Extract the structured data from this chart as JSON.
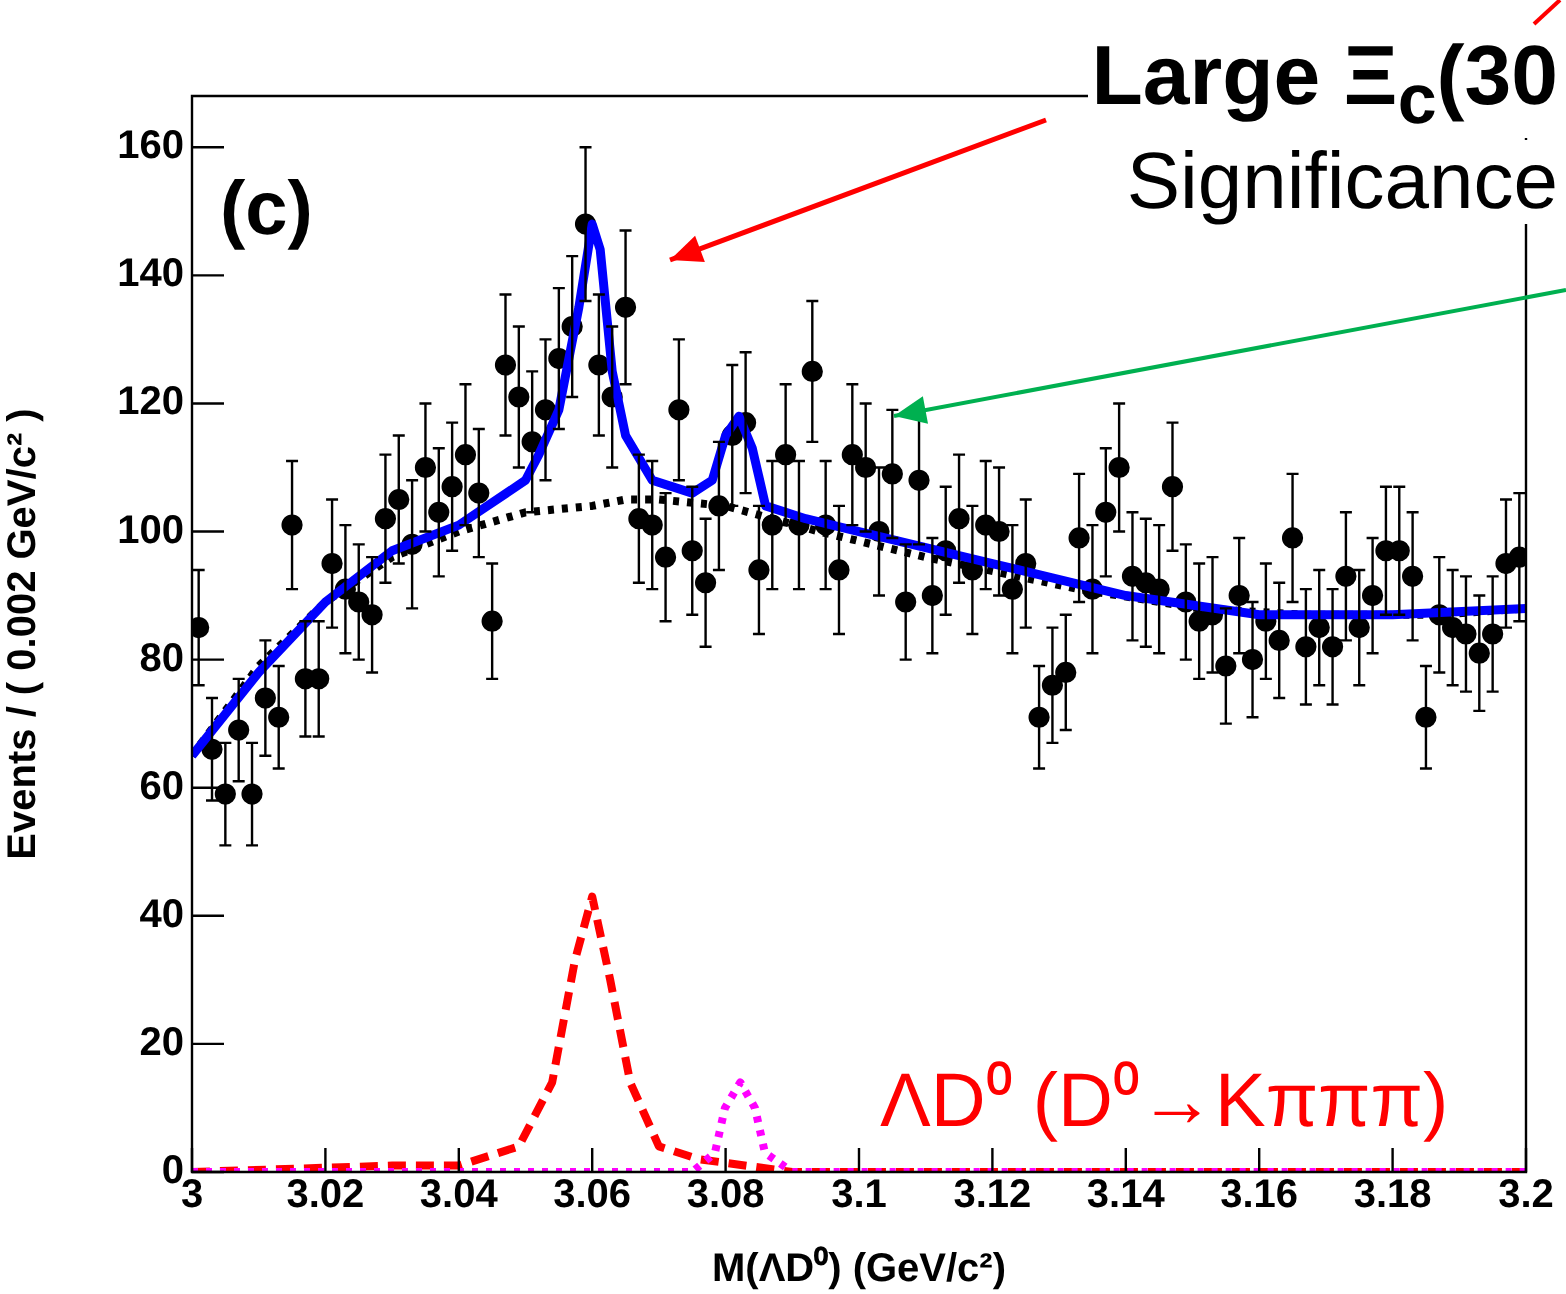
{
  "chart_data": {
    "type": "scatter",
    "title": "Large Ξ$_{c}$(30",
    "subtitle": "Significance",
    "xlabel": "M(ΛD⁰) (GeV/c²)",
    "ylabel": "Events / ( 0.002 GeV/c² )",
    "annotations": [
      "(c)",
      "ΛD⁰ (D⁰→Kπππ)"
    ],
    "xlim": [
      3,
      3.2
    ],
    "xticks": [
      3,
      3.02,
      3.04,
      3.06,
      3.08,
      3.1,
      3.12,
      3.14,
      3.16,
      3.18,
      3.2
    ],
    "ylim": [
      0,
      168
    ],
    "yticks": [
      0,
      20,
      40,
      60,
      80,
      100,
      120,
      140,
      160
    ],
    "grid": false,
    "legend": false,
    "series": [
      {
        "color": "#000000",
        "marker": "circle",
        "x": [
          3.001,
          3.003,
          3.005,
          3.007,
          3.009,
          3.011,
          3.013,
          3.015,
          3.017,
          3.019,
          3.021,
          3.023,
          3.025,
          3.027,
          3.029,
          3.031,
          3.033,
          3.035,
          3.037,
          3.039,
          3.041,
          3.043,
          3.045,
          3.047,
          3.049,
          3.051,
          3.053,
          3.055,
          3.057,
          3.059,
          3.061,
          3.063,
          3.065,
          3.067,
          3.069,
          3.071,
          3.073,
          3.075,
          3.077,
          3.079,
          3.081,
          3.083,
          3.085,
          3.087,
          3.089,
          3.091,
          3.093,
          3.095,
          3.097,
          3.099,
          3.101,
          3.103,
          3.105,
          3.107,
          3.109,
          3.111,
          3.113,
          3.115,
          3.117,
          3.119,
          3.121,
          3.123,
          3.125,
          3.127,
          3.129,
          3.131,
          3.133,
          3.135,
          3.137,
          3.139,
          3.141,
          3.143,
          3.145,
          3.147,
          3.149,
          3.151,
          3.153,
          3.155,
          3.157,
          3.159,
          3.161,
          3.163,
          3.165,
          3.167,
          3.169,
          3.171,
          3.173,
          3.175,
          3.177,
          3.179,
          3.181,
          3.183,
          3.185,
          3.187,
          3.189,
          3.191,
          3.193,
          3.195,
          3.197,
          3.199
        ],
        "values": [
          85,
          66,
          59,
          69,
          59,
          74,
          71,
          101,
          77,
          77,
          95,
          91,
          89,
          87,
          102,
          105,
          98,
          110,
          103,
          107,
          112,
          106,
          86,
          126,
          121,
          114,
          119,
          127,
          132,
          148,
          126,
          121,
          135,
          102,
          101,
          96,
          119,
          97,
          92,
          104,
          115,
          117,
          94,
          101,
          112,
          101,
          125,
          101,
          94,
          112,
          110,
          100,
          109,
          89,
          108,
          90,
          97,
          102,
          94,
          101,
          100,
          91,
          95,
          71,
          76,
          78,
          99,
          91,
          103,
          110,
          93,
          92,
          91,
          107,
          89,
          86,
          87,
          79,
          90,
          80,
          86,
          83,
          99,
          82,
          85,
          82,
          93,
          85,
          90,
          97,
          97,
          93,
          71,
          87,
          85,
          84,
          81,
          84,
          95,
          96
        ],
        "errors": [
          9,
          8,
          8,
          8,
          8,
          9,
          8,
          10,
          9,
          9,
          10,
          10,
          9,
          9,
          10,
          10,
          10,
          10,
          10,
          10,
          11,
          10,
          9,
          11,
          11,
          11,
          11,
          11,
          11,
          12,
          11,
          11,
          12,
          10,
          10,
          10,
          11,
          10,
          10,
          10,
          11,
          11,
          10,
          10,
          11,
          10,
          11,
          10,
          10,
          11,
          10,
          10,
          10,
          9,
          10,
          9,
          10,
          10,
          10,
          10,
          10,
          10,
          10,
          8,
          9,
          9,
          10,
          10,
          10,
          10,
          10,
          10,
          10,
          10,
          9,
          9,
          9,
          9,
          9,
          9,
          9,
          9,
          10,
          9,
          9,
          9,
          10,
          9,
          9,
          10,
          10,
          10,
          8,
          9,
          9,
          9,
          9,
          9,
          10,
          10
        ]
      },
      {
        "type": "line",
        "color": "#000000",
        "line_style": "dotted",
        "x": [
          3.0,
          3.01,
          3.02,
          3.03,
          3.04,
          3.05,
          3.06,
          3.065,
          3.07,
          3.08,
          3.094,
          3.11,
          3.133,
          3.151,
          3.167,
          3.187,
          3.2
        ],
        "values": [
          65,
          79,
          89,
          96,
          100,
          103,
          104,
          105,
          105,
          104,
          100,
          96,
          91,
          88,
          87,
          87,
          88
        ]
      },
      {
        "type": "line",
        "color": "#0000ff",
        "line_style": "solid",
        "x": [
          3.0,
          3.01,
          3.02,
          3.03,
          3.04,
          3.05,
          3.052,
          3.055,
          3.058,
          3.06,
          3.0612,
          3.063,
          3.065,
          3.069,
          3.075,
          3.078,
          3.08,
          3.082,
          3.084,
          3.086,
          3.092,
          3.1,
          3.12,
          3.14,
          3.16,
          3.18,
          3.2
        ],
        "values": [
          65,
          78,
          89,
          97,
          101,
          108,
          112,
          119,
          135,
          148,
          144,
          125,
          115,
          108,
          106,
          108,
          115,
          118,
          113,
          104,
          102,
          100,
          95,
          90,
          87,
          87,
          88
        ]
      },
      {
        "type": "line",
        "color": "#ff0000",
        "line_style": "dashed",
        "x": [
          3.0,
          3.03,
          3.04,
          3.049,
          3.054,
          3.0574,
          3.06,
          3.0627,
          3.0657,
          3.07,
          3.076,
          3.09,
          3.2
        ],
        "values": [
          0,
          1,
          1,
          4,
          14,
          33,
          43,
          30,
          14,
          4,
          2,
          0,
          0
        ]
      },
      {
        "type": "line",
        "color": "#ff00ff",
        "line_style": "dotted",
        "x": [
          3.0,
          3.075,
          3.0784,
          3.0799,
          3.0822,
          3.0844,
          3.0859,
          3.09,
          3.2
        ],
        "values": [
          0,
          0,
          3,
          10,
          14,
          10,
          3,
          0,
          0
        ]
      }
    ]
  }
}
